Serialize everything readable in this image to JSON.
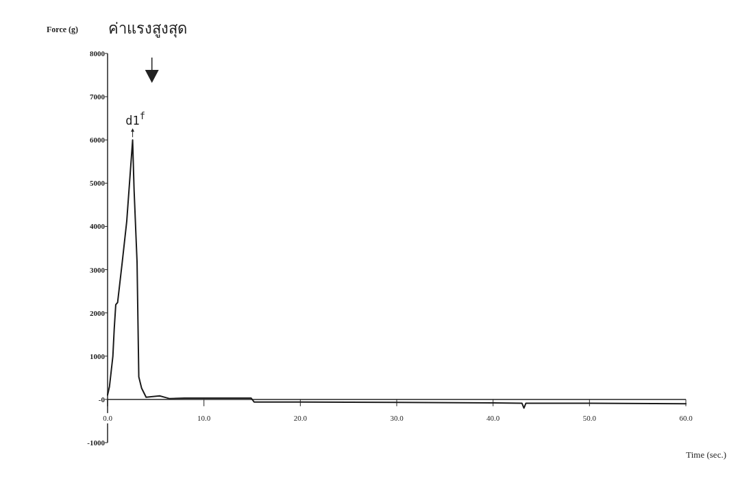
{
  "chart_data": {
    "type": "line",
    "ylabel": "Force (g)",
    "xlabel": "Time (sec.)",
    "annotations": [
      "ค่าแรงสูงสุด",
      {
        "text": "d1$^{f}$",
        "x": 2.6,
        "y": 6000
      }
    ],
    "x": [
      0,
      0.2,
      0.55,
      0.69,
      0.85,
      1.04,
      1.52,
      1.99,
      2.6,
      2.75,
      3.06,
      3.24,
      3.53,
      4.0,
      5.4,
      6.4,
      8,
      10,
      12,
      14.9,
      15.2,
      16,
      20,
      30,
      40,
      43,
      43.2,
      43.4,
      50,
      60
    ],
    "series": [
      {
        "color": "#1a1a1a",
        "values": [
          100,
          300,
          1000,
          1630,
          2190,
          2240,
          3170,
          4120,
          6000,
          4850,
          3170,
          520,
          260,
          50,
          80,
          20,
          30,
          30,
          30,
          30,
          -60,
          -60,
          -60,
          -70,
          -80,
          -90,
          -200,
          -90,
          -90,
          -100
        ]
      }
    ],
    "xlim": [
      0,
      60
    ],
    "ylim": [
      -1000,
      8000
    ],
    "xticks": [
      {
        "value": 0,
        "label": "0.0"
      },
      {
        "value": 10,
        "label": "10.0"
      },
      {
        "value": 20,
        "label": "20.0"
      },
      {
        "value": 30,
        "label": "30.0"
      },
      {
        "value": 40,
        "label": "40.0"
      },
      {
        "value": 50,
        "label": "50.0"
      },
      {
        "value": 60,
        "label": "60.0"
      }
    ],
    "yticks": [
      -1000,
      {
        "value": 0,
        "label": "-0"
      },
      1000,
      2000,
      3000,
      4000,
      5000,
      6000,
      7000,
      8000
    ],
    "grid": false,
    "marker": "none",
    "line_style": "solid"
  }
}
